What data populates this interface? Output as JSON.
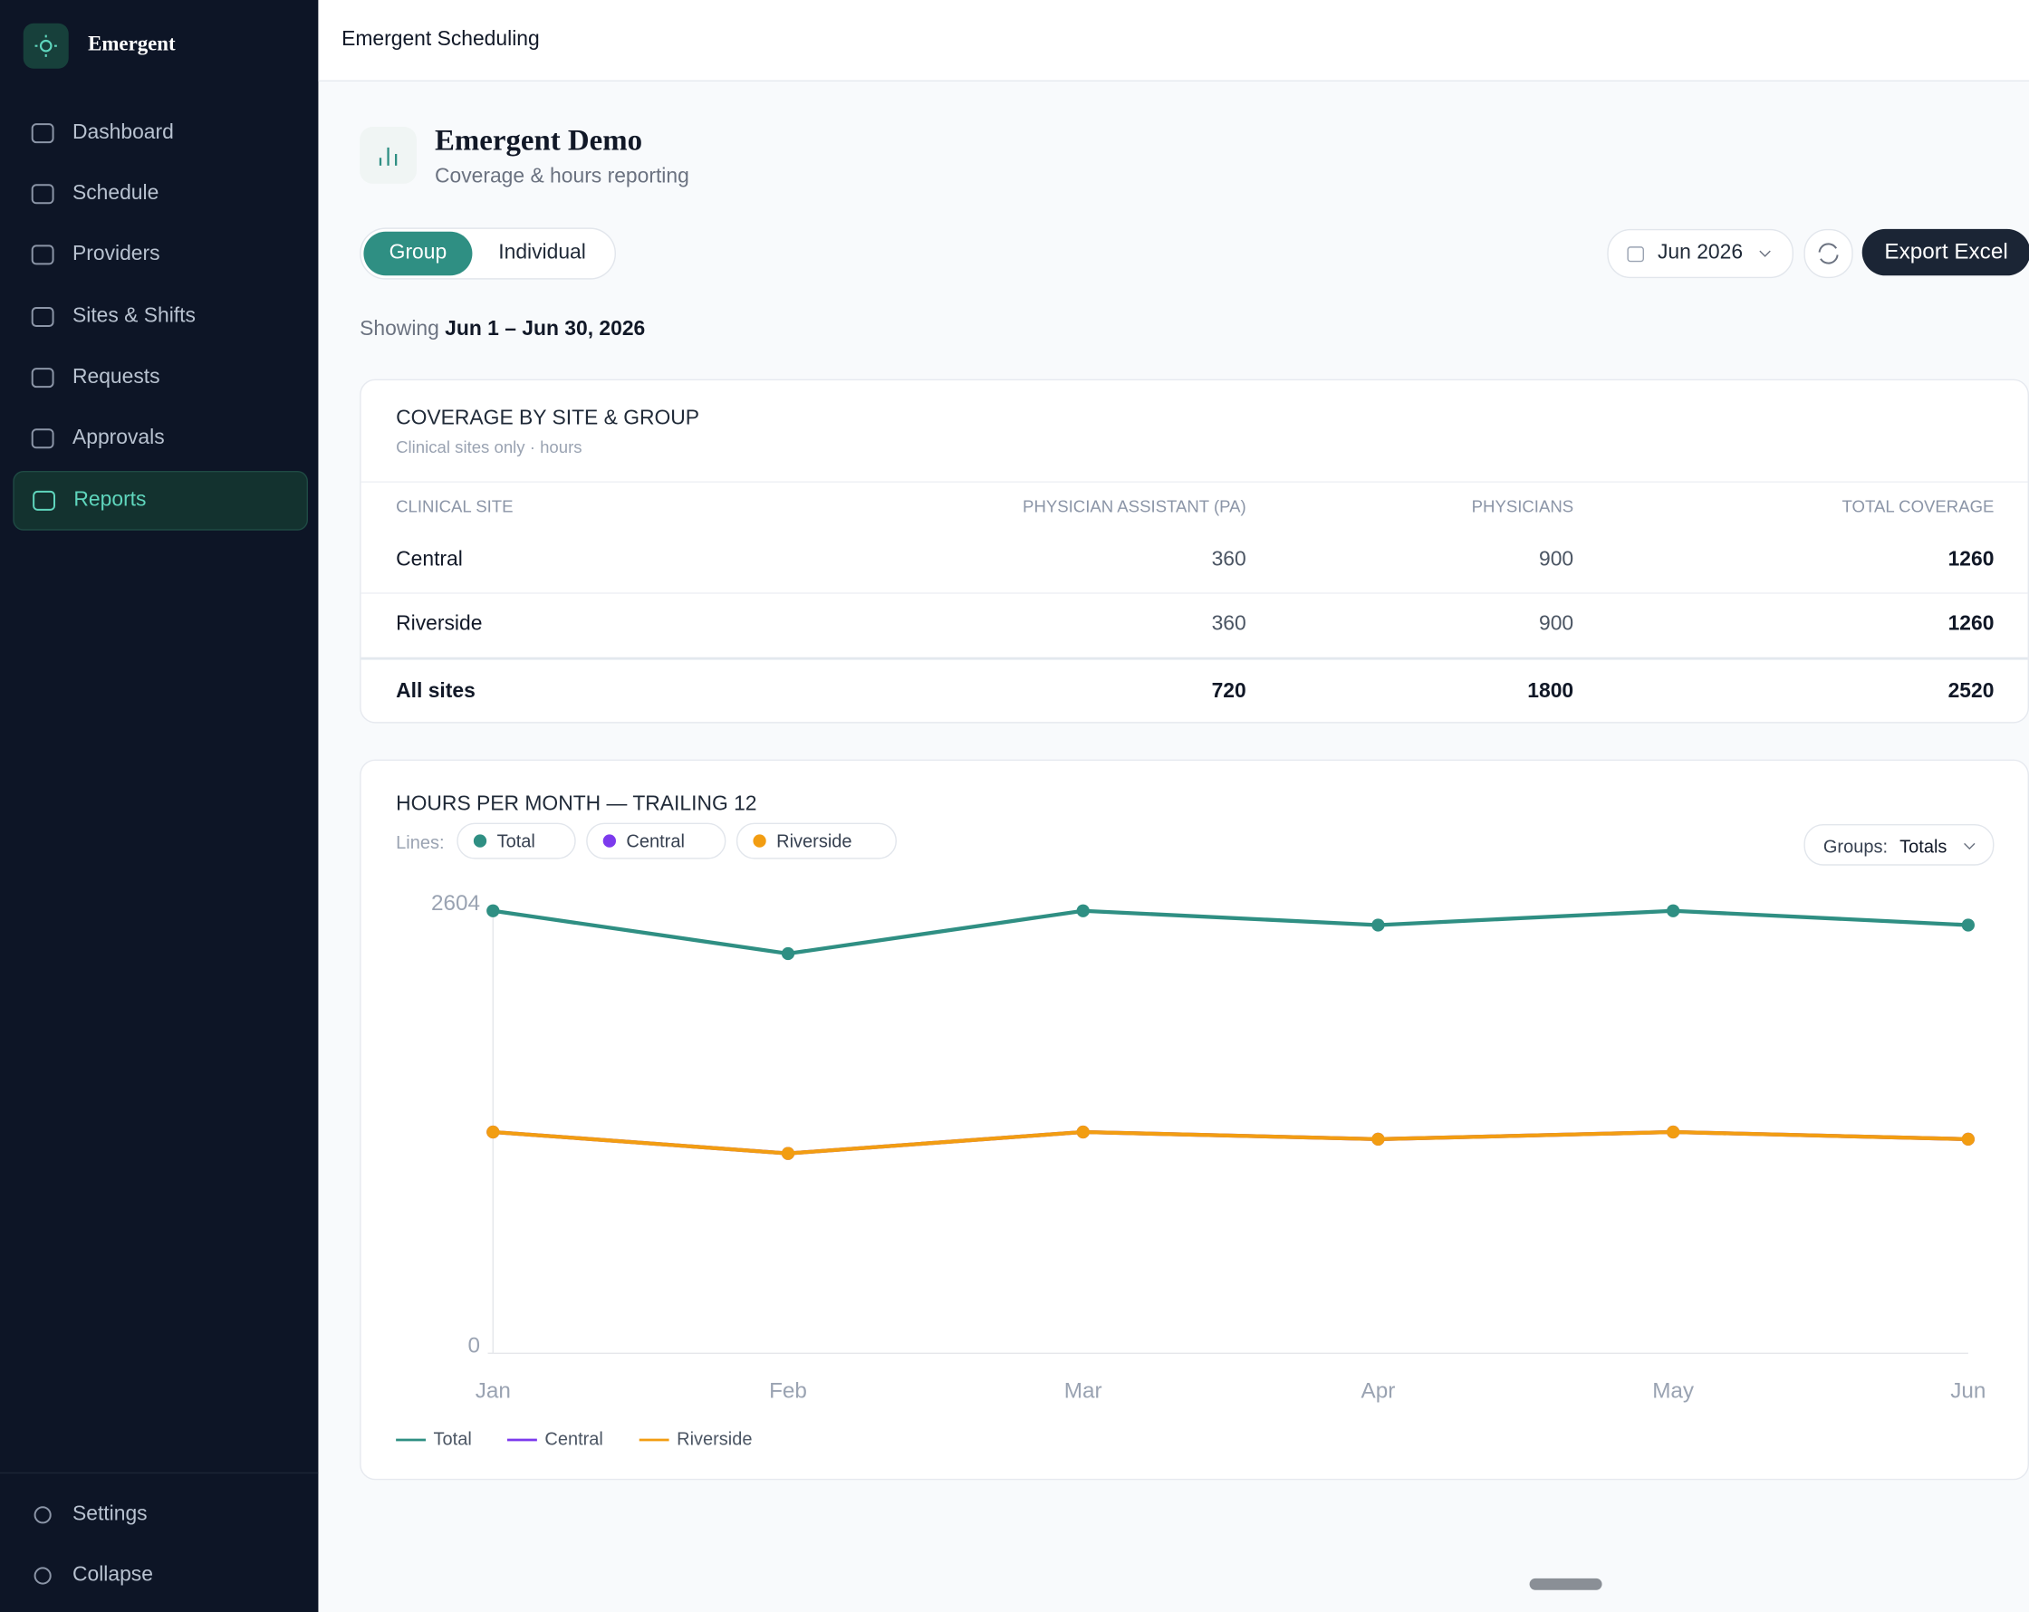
{
  "sidebar": {
    "brand": "Emergent",
    "nav": [
      "Dashboard",
      "Schedule",
      "Providers",
      "Sites & Shifts",
      "Requests",
      "Approvals",
      "Reports"
    ],
    "bottom": [
      "Settings",
      "Collapse"
    ]
  },
  "topbar": {
    "title": "Emergent Scheduling"
  },
  "header": {
    "title": "Emergent Demo",
    "subtitle": "Coverage & hours reporting"
  },
  "toolbar": {
    "tabs": [
      "Group",
      "Individual"
    ],
    "month": "Jun 2026",
    "export": "Export Excel"
  },
  "range": {
    "prefix": "Showing",
    "value": "Jun 1 – Jun 30, 2026"
  },
  "table": {
    "title": "COVERAGE BY SITE & GROUP",
    "subtitle": "Clinical sites only · hours",
    "columns": [
      "CLINICAL SITE",
      "PHYSICIAN ASSISTANT (PA)",
      "PHYSICIANS",
      "TOTAL COVERAGE"
    ],
    "rows": [
      [
        "Central",
        360,
        900,
        1260
      ],
      [
        "Riverside",
        360,
        900,
        1260
      ]
    ],
    "total": [
      "All sites",
      720,
      1800,
      2520
    ]
  },
  "chart_controls": {
    "lines_label": "Lines:",
    "groups_label": "Groups:",
    "groups_value": "Totals"
  },
  "chart_data": {
    "type": "line",
    "title": "HOURS PER MONTH — TRAILING 12",
    "categories": [
      "Jan",
      "Feb",
      "Mar",
      "Apr",
      "May",
      "Jun"
    ],
    "series": [
      {
        "name": "Total",
        "color": "#2f8f83",
        "values": [
          2604,
          2352,
          2604,
          2520,
          2604,
          2520
        ]
      },
      {
        "name": "Central",
        "color": "#7c3aed",
        "values": [
          1302,
          1176,
          1302,
          1260,
          1302,
          1260
        ]
      },
      {
        "name": "Riverside",
        "color": "#f29d12",
        "values": [
          1302,
          1176,
          1302,
          1260,
          1302,
          1260
        ]
      }
    ],
    "ylim": [
      0,
      2604
    ],
    "yticks": [
      0,
      2604
    ],
    "grid": false
  }
}
